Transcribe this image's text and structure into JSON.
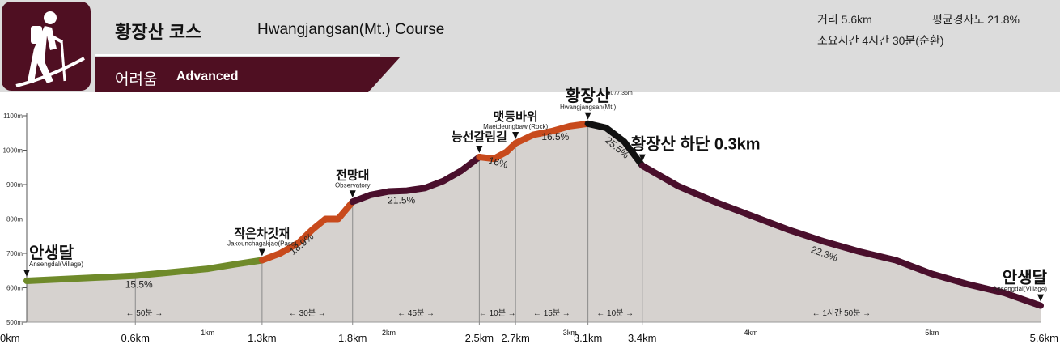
{
  "header": {
    "title_ko": "황장산 코스",
    "title_en": "Hwangjangsan(Mt.) Course",
    "level_ko": "어려움",
    "level_en": "Advanced",
    "distance": "거리 5.6km",
    "avg_grade": "평균경사도 21.8%",
    "duration": "소요시간 4시간 30분(순환)",
    "hiker_icon": "hiker-icon",
    "colors": {
      "banner": "#4f0f22",
      "header_bg": "#dcdcdc",
      "easy_segment": "#6f8a2a",
      "mid_segment": "#c84a1c",
      "hard_segment": "#4a0f2c",
      "summit_segment": "#111111",
      "fill": "#d6d2cf"
    }
  },
  "chart_data": {
    "type": "area",
    "title": "",
    "xlabel": "",
    "ylabel": "",
    "xlim": [
      0,
      5.6
    ],
    "ylim": [
      500,
      1100
    ],
    "y_ticks": [
      "500m",
      "600m",
      "700m",
      "800m",
      "900m",
      "1000m",
      "1100m"
    ],
    "y_tick_values": [
      500,
      600,
      700,
      800,
      900,
      1000,
      1100
    ],
    "x_ticks": [
      {
        "x": 0,
        "label": "0km",
        "major": true
      },
      {
        "x": 0.6,
        "label": "0.6km",
        "major": true
      },
      {
        "x": 1.0,
        "label": "1km",
        "major": false
      },
      {
        "x": 1.3,
        "label": "1.3km",
        "major": true
      },
      {
        "x": 1.8,
        "label": "1.8km",
        "major": true
      },
      {
        "x": 2.0,
        "label": "2km",
        "major": false
      },
      {
        "x": 2.5,
        "label": "2.5km",
        "major": true
      },
      {
        "x": 2.7,
        "label": "2.7km",
        "major": true
      },
      {
        "x": 3.0,
        "label": "3km",
        "major": false
      },
      {
        "x": 3.1,
        "label": "3.1km",
        "major": true
      },
      {
        "x": 3.4,
        "label": "3.4km",
        "major": true
      },
      {
        "x": 4.0,
        "label": "4km",
        "major": false
      },
      {
        "x": 5.0,
        "label": "5km",
        "major": false
      },
      {
        "x": 5.6,
        "label": "5.6km",
        "major": true
      }
    ],
    "profile": [
      [
        0,
        620
      ],
      [
        0.2,
        625
      ],
      [
        0.4,
        630
      ],
      [
        0.6,
        635
      ],
      [
        0.8,
        645
      ],
      [
        1.0,
        655
      ],
      [
        1.15,
        668
      ],
      [
        1.3,
        680
      ],
      [
        1.4,
        700
      ],
      [
        1.5,
        730
      ],
      [
        1.58,
        770
      ],
      [
        1.65,
        800
      ],
      [
        1.72,
        800
      ],
      [
        1.8,
        850
      ],
      [
        1.9,
        870
      ],
      [
        2.0,
        880
      ],
      [
        2.1,
        882
      ],
      [
        2.2,
        890
      ],
      [
        2.3,
        910
      ],
      [
        2.4,
        940
      ],
      [
        2.5,
        980
      ],
      [
        2.58,
        975
      ],
      [
        2.65,
        995
      ],
      [
        2.7,
        1020
      ],
      [
        2.8,
        1045
      ],
      [
        2.9,
        1055
      ],
      [
        3.0,
        1070
      ],
      [
        3.1,
        1077
      ],
      [
        3.2,
        1065
      ],
      [
        3.3,
        1025
      ],
      [
        3.4,
        955
      ],
      [
        3.6,
        895
      ],
      [
        3.8,
        850
      ],
      [
        4.0,
        810
      ],
      [
        4.2,
        770
      ],
      [
        4.4,
        735
      ],
      [
        4.6,
        705
      ],
      [
        4.8,
        680
      ],
      [
        5.0,
        640
      ],
      [
        5.2,
        610
      ],
      [
        5.4,
        585
      ],
      [
        5.6,
        548
      ]
    ],
    "segments": [
      {
        "from": 0,
        "to": 1.3,
        "color": "#6f8a2a",
        "grade": "15.5%",
        "grade_x": 0.62,
        "grade_y": 600
      },
      {
        "from": 1.3,
        "to": 1.8,
        "color": "#c84a1c",
        "grade": "18.9%",
        "grade_x": 1.53,
        "grade_y": 720
      },
      {
        "from": 1.8,
        "to": 2.5,
        "color": "#4a0f2c",
        "grade": "21.5%",
        "grade_x": 2.07,
        "grade_y": 845
      },
      {
        "from": 2.5,
        "to": 2.7,
        "color": "#c84a1c",
        "grade": "16%",
        "grade_x": 2.6,
        "grade_y": 955
      },
      {
        "from": 2.7,
        "to": 3.1,
        "color": "#c84a1c",
        "grade": "16.5%",
        "grade_x": 2.92,
        "grade_y": 1030
      },
      {
        "from": 3.1,
        "to": 3.4,
        "color": "#111111",
        "grade": "25.5%",
        "grade_x": 3.25,
        "grade_y": 1000
      },
      {
        "from": 3.4,
        "to": 5.6,
        "color": "#4a0f2c",
        "grade": "22.3%",
        "grade_x": 4.4,
        "grade_y": 690
      }
    ],
    "times": [
      {
        "from": 0,
        "to": 1.3,
        "label": "← 50분 →"
      },
      {
        "from": 1.3,
        "to": 1.8,
        "label": "← 30분 →"
      },
      {
        "from": 1.8,
        "to": 2.5,
        "label": "← 45분 →"
      },
      {
        "from": 2.5,
        "to": 2.7,
        "label": "← 10분 →"
      },
      {
        "from": 2.7,
        "to": 3.1,
        "label": "← 15분 →"
      },
      {
        "from": 3.1,
        "to": 3.4,
        "label": "← 10분 →"
      },
      {
        "from": 3.4,
        "to": 5.6,
        "label": "← 1시간 50분 →"
      }
    ],
    "landmarks": [
      {
        "x": 0,
        "elev": 620,
        "ko": "안생달",
        "en": "Ansengdal(Village)",
        "anchor": "start"
      },
      {
        "x": 1.3,
        "elev": 680,
        "ko": "작은차갓재",
        "en": "Jakeunchagakjae(Pass)",
        "anchor": "middle"
      },
      {
        "x": 1.8,
        "elev": 850,
        "ko": "전망대",
        "en": "Observatory",
        "anchor": "middle"
      },
      {
        "x": 2.5,
        "elev": 980,
        "ko": "능선갈림길",
        "en": "",
        "anchor": "middle"
      },
      {
        "x": 2.7,
        "elev": 1020,
        "ko": "맷등바위",
        "en": "Maetdeungbawi(Rock)",
        "anchor": "middle"
      },
      {
        "x": 3.1,
        "elev": 1077,
        "ko": "황장산",
        "en": "Hwangjangsan(Mt.)",
        "extra": "1077.36m",
        "anchor": "middle",
        "summit": true
      },
      {
        "x": 3.4,
        "elev": 955,
        "ko": "황장산 하단 0.3km",
        "en": "",
        "anchor": "start"
      },
      {
        "x": 5.6,
        "elev": 548,
        "ko": "안생달",
        "en": "Ansengdal(Village)",
        "anchor": "end"
      }
    ]
  }
}
